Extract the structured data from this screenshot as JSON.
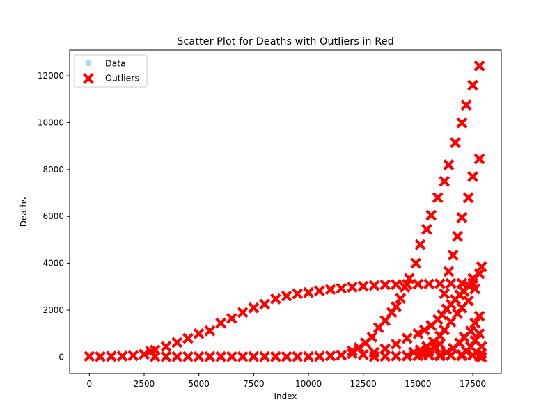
{
  "chart_data": {
    "type": "scatter",
    "title": "Scatter Plot for Deaths with Outliers in Red",
    "xlabel": "Index",
    "ylabel": "Deaths",
    "xlim": [
      -900,
      18800
    ],
    "ylim": [
      -700,
      13100
    ],
    "x_ticks": [
      0,
      2500,
      5000,
      7500,
      10000,
      12500,
      15000,
      17500
    ],
    "y_ticks": [
      0,
      2000,
      4000,
      6000,
      8000,
      10000,
      12000
    ],
    "grid": false,
    "legend": {
      "position": "top-left",
      "entries": [
        {
          "label": "Data",
          "marker": "circle",
          "color": "#87ceeb"
        },
        {
          "label": "Outliers",
          "marker": "x",
          "color": "#ff0000"
        }
      ]
    },
    "series": [
      {
        "name": "Outliers",
        "color": "#ff0000",
        "marker": "x",
        "points": [
          [
            0,
            30
          ],
          [
            500,
            20
          ],
          [
            1000,
            30
          ],
          [
            1500,
            40
          ],
          [
            2000,
            60
          ],
          [
            2500,
            120
          ],
          [
            2800,
            250
          ],
          [
            3000,
            300
          ],
          [
            3500,
            450
          ],
          [
            4000,
            620
          ],
          [
            4500,
            800
          ],
          [
            5000,
            1000
          ],
          [
            5500,
            1120
          ],
          [
            6000,
            1450
          ],
          [
            6500,
            1650
          ],
          [
            7000,
            1900
          ],
          [
            7500,
            2100
          ],
          [
            8000,
            2250
          ],
          [
            8500,
            2480
          ],
          [
            9000,
            2600
          ],
          [
            9500,
            2700
          ],
          [
            10000,
            2750
          ],
          [
            10500,
            2820
          ],
          [
            11000,
            2880
          ],
          [
            11500,
            2930
          ],
          [
            12000,
            2980
          ],
          [
            12500,
            3020
          ],
          [
            13000,
            3050
          ],
          [
            13500,
            3080
          ],
          [
            14000,
            3090
          ],
          [
            14500,
            3100
          ],
          [
            15000,
            3110
          ],
          [
            15500,
            3120
          ],
          [
            16000,
            3130
          ],
          [
            16500,
            3140
          ],
          [
            17000,
            3140
          ],
          [
            17500,
            3150
          ],
          [
            3000,
            20
          ],
          [
            3500,
            20
          ],
          [
            4000,
            20
          ],
          [
            4500,
            20
          ],
          [
            5000,
            20
          ],
          [
            5500,
            20
          ],
          [
            6000,
            20
          ],
          [
            6500,
            20
          ],
          [
            7000,
            20
          ],
          [
            7500,
            20
          ],
          [
            8000,
            20
          ],
          [
            8500,
            20
          ],
          [
            9000,
            20
          ],
          [
            9500,
            20
          ],
          [
            10000,
            20
          ],
          [
            10500,
            30
          ],
          [
            11000,
            50
          ],
          [
            11500,
            80
          ],
          [
            12000,
            150
          ],
          [
            12000,
            260
          ],
          [
            12300,
            400
          ],
          [
            12600,
            600
          ],
          [
            12900,
            850
          ],
          [
            13200,
            1250
          ],
          [
            13500,
            1550
          ],
          [
            13800,
            1900
          ],
          [
            14000,
            2150
          ],
          [
            14200,
            2500
          ],
          [
            14400,
            2980
          ],
          [
            14600,
            3350
          ],
          [
            14900,
            4000
          ],
          [
            15100,
            4800
          ],
          [
            15400,
            5450
          ],
          [
            15600,
            6050
          ],
          [
            15900,
            6800
          ],
          [
            16200,
            7500
          ],
          [
            16400,
            8200
          ],
          [
            16700,
            9150
          ],
          [
            17000,
            10000
          ],
          [
            17200,
            10750
          ],
          [
            17500,
            11600
          ],
          [
            17800,
            12420
          ],
          [
            12500,
            100
          ],
          [
            13000,
            200
          ],
          [
            13500,
            350
          ],
          [
            14000,
            550
          ],
          [
            14500,
            800
          ],
          [
            15000,
            1000
          ],
          [
            15300,
            1150
          ],
          [
            15600,
            1350
          ],
          [
            15900,
            1600
          ],
          [
            16100,
            1800
          ],
          [
            16300,
            2050
          ],
          [
            16500,
            2250
          ],
          [
            16700,
            2450
          ],
          [
            16900,
            2650
          ],
          [
            17100,
            2800
          ],
          [
            17300,
            3050
          ],
          [
            17500,
            3350
          ],
          [
            17800,
            3550
          ],
          [
            14800,
            200
          ],
          [
            15100,
            300
          ],
          [
            15400,
            450
          ],
          [
            15700,
            650
          ],
          [
            16000,
            900
          ],
          [
            16200,
            1150
          ],
          [
            16500,
            1500
          ],
          [
            16800,
            1850
          ],
          [
            17000,
            2100
          ],
          [
            17300,
            2400
          ],
          [
            17600,
            2900
          ],
          [
            17900,
            3850
          ],
          [
            15200,
            100
          ],
          [
            15500,
            250
          ],
          [
            15800,
            400
          ],
          [
            16000,
            550
          ],
          [
            16200,
            2700
          ],
          [
            16400,
            3650
          ],
          [
            16600,
            4350
          ],
          [
            16800,
            5150
          ],
          [
            17000,
            5950
          ],
          [
            17300,
            6800
          ],
          [
            17500,
            7700
          ],
          [
            17800,
            8450
          ],
          [
            16000,
            100
          ],
          [
            16300,
            200
          ],
          [
            16600,
            380
          ],
          [
            16900,
            600
          ],
          [
            17100,
            850
          ],
          [
            17400,
            1100
          ],
          [
            17600,
            1450
          ],
          [
            17800,
            1750
          ],
          [
            17000,
            100
          ],
          [
            17200,
            250
          ],
          [
            17400,
            450
          ],
          [
            17600,
            700
          ],
          [
            17800,
            1000
          ],
          [
            17900,
            450
          ],
          [
            17900,
            150
          ],
          [
            17900,
            0
          ],
          [
            13000,
            20
          ],
          [
            13500,
            30
          ],
          [
            14000,
            40
          ],
          [
            14500,
            50
          ],
          [
            15000,
            60
          ],
          [
            15500,
            80
          ],
          [
            16000,
            50
          ],
          [
            16500,
            70
          ],
          [
            17000,
            60
          ],
          [
            17500,
            80
          ],
          [
            17800,
            30
          ]
        ]
      }
    ]
  }
}
